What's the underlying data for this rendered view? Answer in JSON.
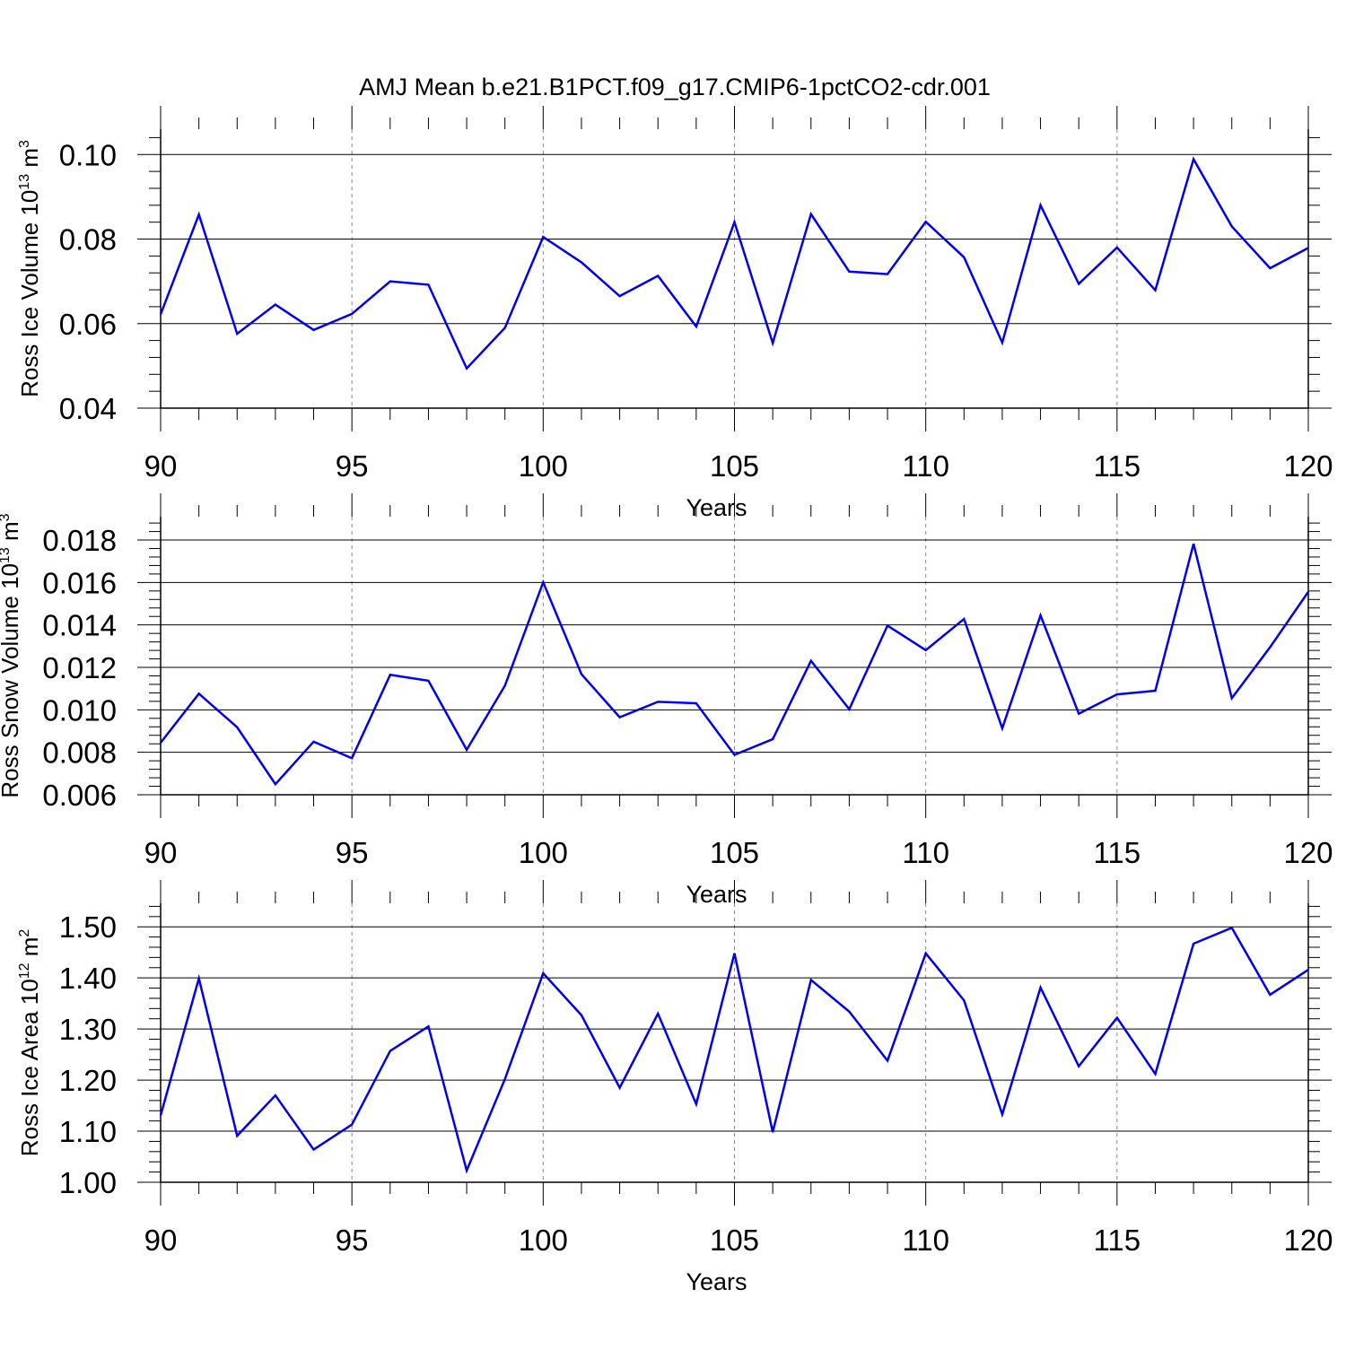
{
  "title": "AMJ Mean b.e21.B1PCT.f09_g17.CMIP6-1pctCO2-cdr.001",
  "colors": {
    "line": "#0000ee",
    "axis": "#000000",
    "grid": "#888888",
    "background": "#ffffff"
  },
  "chart_data": [
    {
      "type": "line",
      "ylabel_main": "Ross Ice Volume 10",
      "ylabel_exp": "13",
      "ylabel_unit": " m",
      "ylabel_unit_exp": "3",
      "xlabel": "Years",
      "xlim": [
        90,
        120
      ],
      "ylim": [
        0.04,
        0.106
      ],
      "yticks": [
        0.04,
        0.06,
        0.08,
        0.1
      ],
      "ytick_labels": [
        "0.04",
        "0.06",
        "0.08",
        "0.10"
      ],
      "xticks": [
        90,
        95,
        100,
        105,
        110,
        115,
        120
      ],
      "xtick_labels": [
        "90",
        "95",
        "100",
        "105",
        "110",
        "115",
        "120"
      ],
      "grid_x": [
        95,
        100,
        105,
        110,
        115
      ],
      "x": [
        90,
        91,
        92,
        93,
        94,
        95,
        96,
        97,
        98,
        99,
        100,
        101,
        102,
        103,
        104,
        105,
        106,
        107,
        108,
        109,
        110,
        111,
        112,
        113,
        114,
        115,
        116,
        117,
        118,
        119,
        120
      ],
      "values": [
        0.0622,
        0.0858,
        0.0576,
        0.0645,
        0.0585,
        0.0623,
        0.07,
        0.0692,
        0.0494,
        0.059,
        0.0805,
        0.0745,
        0.0665,
        0.0713,
        0.0593,
        0.084,
        0.0554,
        0.0859,
        0.0723,
        0.0717,
        0.0841,
        0.0757,
        0.0555,
        0.088,
        0.0694,
        0.078,
        0.0679,
        0.0989,
        0.083,
        0.0731,
        0.0779
      ]
    },
    {
      "type": "line",
      "ylabel_main": "Ross Snow Volume 10",
      "ylabel_exp": "13",
      "ylabel_unit": " m",
      "ylabel_unit_exp": "3",
      "xlabel": "Years",
      "xlim": [
        90,
        120
      ],
      "ylim": [
        0.006,
        0.0191
      ],
      "yticks": [
        0.006,
        0.008,
        0.01,
        0.012,
        0.014,
        0.016,
        0.018
      ],
      "ytick_labels": [
        "0.006",
        "0.008",
        "0.010",
        "0.012",
        "0.014",
        "0.016",
        "0.018"
      ],
      "xticks": [
        90,
        95,
        100,
        105,
        110,
        115,
        120
      ],
      "xtick_labels": [
        "90",
        "95",
        "100",
        "105",
        "110",
        "115",
        "120"
      ],
      "grid_x": [
        95,
        100,
        105,
        110,
        115
      ],
      "x": [
        90,
        91,
        92,
        93,
        94,
        95,
        96,
        97,
        98,
        99,
        100,
        101,
        102,
        103,
        104,
        105,
        106,
        107,
        108,
        109,
        110,
        111,
        112,
        113,
        114,
        115,
        116,
        117,
        118,
        119,
        120
      ],
      "values": [
        0.00845,
        0.01076,
        0.00918,
        0.0065,
        0.0085,
        0.00772,
        0.01165,
        0.01137,
        0.00812,
        0.01114,
        0.01601,
        0.01168,
        0.00965,
        0.01038,
        0.01031,
        0.00788,
        0.00862,
        0.01231,
        0.01003,
        0.01397,
        0.01281,
        0.01428,
        0.00913,
        0.01445,
        0.00982,
        0.01073,
        0.0109,
        0.01782,
        0.01055,
        0.01295,
        0.01556
      ]
    },
    {
      "type": "line",
      "ylabel_main": "Ross Ice Area 10",
      "ylabel_exp": "12",
      "ylabel_unit": " m",
      "ylabel_unit_exp": "2",
      "xlabel": "Years",
      "xlim": [
        90,
        120
      ],
      "ylim": [
        1.0,
        1.546
      ],
      "yticks": [
        1.0,
        1.1,
        1.2,
        1.3,
        1.4,
        1.5
      ],
      "ytick_labels": [
        "1.00",
        "1.10",
        "1.20",
        "1.30",
        "1.40",
        "1.50"
      ],
      "xticks": [
        90,
        95,
        100,
        105,
        110,
        115,
        120
      ],
      "xtick_labels": [
        "90",
        "95",
        "100",
        "105",
        "110",
        "115",
        "120"
      ],
      "grid_x": [
        95,
        100,
        105,
        110,
        115
      ],
      "x": [
        90,
        91,
        92,
        93,
        94,
        95,
        96,
        97,
        98,
        99,
        100,
        101,
        102,
        103,
        104,
        105,
        106,
        107,
        108,
        109,
        110,
        111,
        112,
        113,
        114,
        115,
        116,
        117,
        118,
        119,
        120
      ],
      "values": [
        1.131,
        1.399,
        1.091,
        1.17,
        1.064,
        1.113,
        1.257,
        1.305,
        1.023,
        1.202,
        1.409,
        1.327,
        1.185,
        1.33,
        1.153,
        1.448,
        1.098,
        1.396,
        1.334,
        1.238,
        1.448,
        1.356,
        1.133,
        1.381,
        1.227,
        1.322,
        1.212,
        1.467,
        1.498,
        1.367,
        1.416
      ]
    }
  ]
}
